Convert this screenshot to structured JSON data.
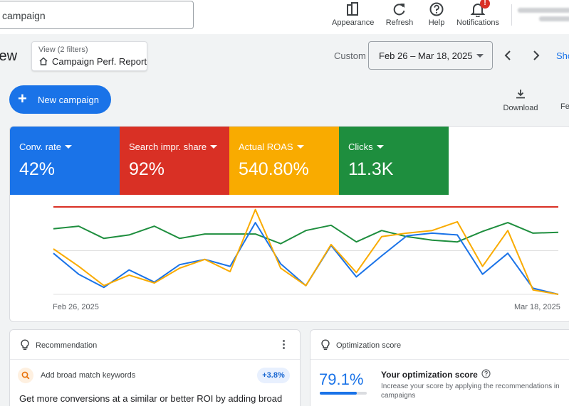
{
  "search": {
    "value": "campaign"
  },
  "topbar": {
    "appearance_label": "Appearance",
    "refresh_label": "Refresh",
    "help_label": "Help",
    "notifications_label": "Notifications",
    "notification_badge": "!"
  },
  "subheader": {
    "page_title": "iew",
    "view_filters": "View (2 filters)",
    "view_name": "Campaign Perf. Report",
    "custom_label": "Custom",
    "date_range": "Feb 26 – Mar 18, 2025",
    "show_link": "Sho"
  },
  "actions": {
    "new_campaign_label": "New campaign",
    "download_label": "Download",
    "fe_label": "Fe"
  },
  "metrics": [
    {
      "label": "Conv. rate",
      "value": "42%",
      "color": "#1a73e8"
    },
    {
      "label": "Search impr. share",
      "value": "92%",
      "color": "#d93025"
    },
    {
      "label": "Actual ROAS",
      "value": "540.80%",
      "color": "#f9ab00"
    },
    {
      "label": "Clicks",
      "value": "11.3K",
      "color": "#1e8e3e"
    }
  ],
  "chart_data": {
    "type": "line",
    "x": [
      "Feb 26, 2025",
      "Feb 27, 2025",
      "Feb 28, 2025",
      "Mar 1, 2025",
      "Mar 2, 2025",
      "Mar 3, 2025",
      "Mar 4, 2025",
      "Mar 5, 2025",
      "Mar 6, 2025",
      "Mar 7, 2025",
      "Mar 8, 2025",
      "Mar 9, 2025",
      "Mar 10, 2025",
      "Mar 11, 2025",
      "Mar 12, 2025",
      "Mar 13, 2025",
      "Mar 14, 2025",
      "Mar 15, 2025",
      "Mar 16, 2025",
      "Mar 17, 2025",
      "Mar 18, 2025"
    ],
    "xtick_labels": [
      "Feb 26, 2025",
      "Mar 18, 2025"
    ],
    "ylim": [
      0,
      100
    ],
    "grid": true,
    "series": [
      {
        "color": "#d93025",
        "values": [
          100,
          100,
          100,
          100,
          100,
          100,
          100,
          100,
          100,
          100,
          100,
          100,
          100,
          100,
          100,
          100,
          100,
          100,
          100,
          100,
          100
        ]
      },
      {
        "color": "#1e8e3e",
        "values": [
          75,
          78,
          64,
          68,
          78,
          64,
          69,
          69,
          69,
          58,
          73,
          79,
          60,
          73,
          66,
          62,
          60,
          72,
          82,
          70,
          71
        ]
      },
      {
        "color": "#1a73e8",
        "values": [
          47,
          23,
          8,
          28,
          14,
          34,
          40,
          32,
          82,
          35,
          10,
          56,
          20,
          44,
          67,
          70,
          68,
          23,
          47,
          7,
          0
        ]
      },
      {
        "color": "#f9ab00",
        "values": [
          52,
          32,
          10,
          22,
          13,
          30,
          40,
          26,
          97,
          30,
          10,
          57,
          25,
          66,
          70,
          73,
          83,
          32,
          73,
          5,
          0
        ]
      }
    ]
  },
  "recommendation": {
    "title": "Recommendation",
    "item_text": "Add broad match keywords",
    "badge": "+3.8%",
    "description": "Get more conversions at a similar or better ROI by adding broad"
  },
  "optimization": {
    "title": "Optimization score",
    "score": "79.1%",
    "score_fraction": 0.791,
    "heading": "Your optimization score",
    "description": "Increase your score by applying the recommendations in campaigns"
  }
}
